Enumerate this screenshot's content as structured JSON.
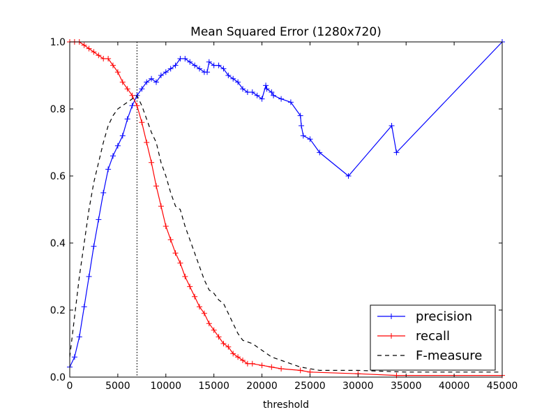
{
  "chart_data": {
    "type": "line",
    "title": "Mean Squared Error (1280x720)",
    "xlabel": "threshold",
    "ylabel": "",
    "xlim": [
      0,
      45000
    ],
    "ylim": [
      0,
      1.0
    ],
    "x_ticks": [
      "0",
      "5000",
      "10000",
      "15000",
      "20000",
      "25000",
      "30000",
      "35000",
      "40000",
      "45000"
    ],
    "y_ticks": [
      "0.0",
      "0.2",
      "0.4",
      "0.6",
      "0.8",
      "1.0"
    ],
    "grid": false,
    "legend_position": "bottom-right",
    "reference_line": {
      "x": 7000,
      "style": "dotted",
      "color": "#000000"
    },
    "series": [
      {
        "name": "precision",
        "color": "#0000ff",
        "line": "solid",
        "marker": "+",
        "x": [
          0,
          500,
          1000,
          1500,
          2000,
          2500,
          3000,
          3500,
          4000,
          4500,
          5000,
          5500,
          6000,
          6500,
          7000,
          7500,
          8000,
          8500,
          9000,
          9500,
          10000,
          10500,
          11000,
          11500,
          12000,
          12500,
          13000,
          13500,
          14000,
          14300,
          14500,
          15000,
          15500,
          16000,
          16500,
          17000,
          17500,
          18000,
          18500,
          19000,
          19500,
          20000,
          20400,
          20500,
          21000,
          21200,
          22000,
          23000,
          24000,
          24100,
          24300,
          25000,
          26000,
          29000,
          33500,
          34000,
          45000
        ],
        "y": [
          0.03,
          0.06,
          0.12,
          0.21,
          0.3,
          0.39,
          0.47,
          0.55,
          0.62,
          0.66,
          0.69,
          0.72,
          0.77,
          0.81,
          0.84,
          0.86,
          0.88,
          0.89,
          0.88,
          0.9,
          0.91,
          0.92,
          0.93,
          0.95,
          0.95,
          0.94,
          0.93,
          0.92,
          0.91,
          0.91,
          0.94,
          0.93,
          0.93,
          0.92,
          0.9,
          0.89,
          0.88,
          0.86,
          0.85,
          0.85,
          0.84,
          0.83,
          0.87,
          0.86,
          0.85,
          0.84,
          0.83,
          0.82,
          0.78,
          0.75,
          0.72,
          0.71,
          0.67,
          0.6,
          0.75,
          0.67,
          1.0
        ]
      },
      {
        "name": "recall",
        "color": "#ff0000",
        "line": "solid",
        "marker": "+",
        "x": [
          0,
          500,
          1000,
          1500,
          2000,
          2500,
          3000,
          3500,
          4000,
          4500,
          5000,
          5500,
          6000,
          6500,
          7000,
          7500,
          8000,
          8500,
          9000,
          9500,
          10000,
          10500,
          11000,
          11500,
          12000,
          12500,
          13000,
          13500,
          14000,
          14500,
          15000,
          15500,
          16000,
          16500,
          17000,
          17500,
          18000,
          18500,
          19000,
          20000,
          21000,
          22000,
          24000,
          25000,
          30000,
          34000,
          45000
        ],
        "y": [
          1.0,
          1.0,
          1.0,
          0.99,
          0.98,
          0.97,
          0.96,
          0.95,
          0.95,
          0.93,
          0.91,
          0.88,
          0.86,
          0.84,
          0.81,
          0.76,
          0.7,
          0.64,
          0.57,
          0.51,
          0.45,
          0.41,
          0.37,
          0.34,
          0.3,
          0.27,
          0.24,
          0.21,
          0.19,
          0.16,
          0.14,
          0.12,
          0.1,
          0.09,
          0.07,
          0.06,
          0.05,
          0.04,
          0.04,
          0.035,
          0.03,
          0.025,
          0.02,
          0.015,
          0.01,
          0.005,
          0.005
        ]
      },
      {
        "name": "F-measure",
        "color": "#000000",
        "line": "dashed",
        "marker": "none",
        "x": [
          0,
          500,
          1000,
          1500,
          2000,
          2500,
          3000,
          3500,
          4000,
          4500,
          5000,
          5500,
          6000,
          6500,
          7000,
          7500,
          8000,
          8500,
          9000,
          9500,
          10000,
          10500,
          11000,
          11500,
          12000,
          12500,
          13000,
          13500,
          14000,
          14500,
          15000,
          15500,
          16000,
          16500,
          17000,
          17500,
          18000,
          19000,
          20000,
          21000,
          22000,
          24000,
          26000,
          30000,
          35000,
          45000
        ],
        "y": [
          0.06,
          0.18,
          0.3,
          0.4,
          0.5,
          0.58,
          0.64,
          0.7,
          0.75,
          0.78,
          0.8,
          0.81,
          0.82,
          0.83,
          0.84,
          0.81,
          0.77,
          0.73,
          0.7,
          0.64,
          0.6,
          0.55,
          0.51,
          0.5,
          0.45,
          0.41,
          0.37,
          0.33,
          0.29,
          0.26,
          0.25,
          0.23,
          0.22,
          0.19,
          0.16,
          0.13,
          0.11,
          0.1,
          0.08,
          0.06,
          0.05,
          0.03,
          0.02,
          0.02,
          0.015,
          0.015
        ]
      }
    ]
  }
}
